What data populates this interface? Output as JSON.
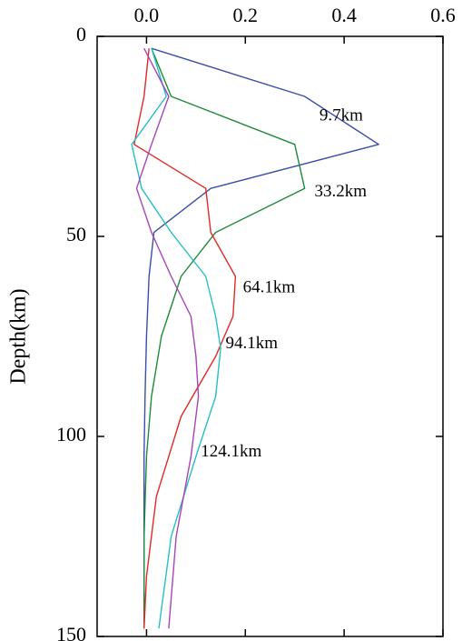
{
  "chart_data": {
    "type": "line",
    "title": "",
    "xlabel": "",
    "ylabel": "Depth(km)",
    "xlim": [
      -0.1,
      0.6
    ],
    "ylim": [
      0,
      150
    ],
    "y_inverted": true,
    "x_axis_position": "top",
    "grid": false,
    "legend": "inline labels",
    "x_ticks": [
      0.0,
      0.2,
      0.4,
      0.6
    ],
    "x_tick_labels": [
      "0.0",
      "0.2",
      "0.4",
      "0.6"
    ],
    "y_ticks": [
      0,
      50,
      100,
      150
    ],
    "y_tick_labels": [
      "0",
      "50",
      "100",
      "150"
    ],
    "series": [
      {
        "label": "9.7km",
        "color": "#3a4fa8",
        "x": [
          0.01,
          0.32,
          0.47,
          0.13,
          0.015,
          0.005,
          0.0,
          -0.003,
          -0.005,
          -0.005,
          -0.005
        ],
        "y": [
          3,
          15,
          27,
          38,
          49,
          60,
          75,
          90,
          105,
          125,
          148
        ],
        "label_at": [
          0.35,
          20
        ]
      },
      {
        "label": "33.2km",
        "color": "#1f8a3a",
        "x": [
          0.01,
          0.05,
          0.3,
          0.32,
          0.14,
          0.07,
          0.03,
          0.01,
          0.0,
          -0.005,
          -0.005
        ],
        "y": [
          3,
          15,
          27,
          38,
          49,
          60,
          75,
          90,
          105,
          125,
          148
        ],
        "label_at": [
          0.34,
          39
        ]
      },
      {
        "label": "64.1km",
        "color": "#e02a26",
        "x": [
          0.005,
          -0.005,
          -0.025,
          0.12,
          0.13,
          0.18,
          0.175,
          0.14,
          0.07,
          0.02,
          0.0,
          -0.005
        ],
        "y": [
          3,
          15,
          27,
          38,
          49,
          60,
          70,
          80,
          95,
          115,
          135,
          148
        ],
        "label_at": [
          0.195,
          63
        ]
      },
      {
        "label": "94.1km",
        "color": "#26c0c4",
        "x": [
          0.01,
          0.04,
          -0.03,
          -0.01,
          0.05,
          0.12,
          0.14,
          0.15,
          0.14,
          0.1,
          0.05,
          0.025
        ],
        "y": [
          3,
          15,
          27,
          38,
          49,
          60,
          70,
          78,
          90,
          105,
          125,
          148
        ],
        "label_at": [
          0.16,
          77
        ]
      },
      {
        "label": "124.1km",
        "color": "#a744b8",
        "x": [
          -0.005,
          0.045,
          0.01,
          -0.02,
          0.01,
          0.05,
          0.09,
          0.1,
          0.105,
          0.09,
          0.06,
          0.045
        ],
        "y": [
          3,
          15,
          27,
          38,
          49,
          60,
          70,
          80,
          90,
          105,
          125,
          148
        ],
        "label_at": [
          0.11,
          104
        ]
      }
    ]
  }
}
